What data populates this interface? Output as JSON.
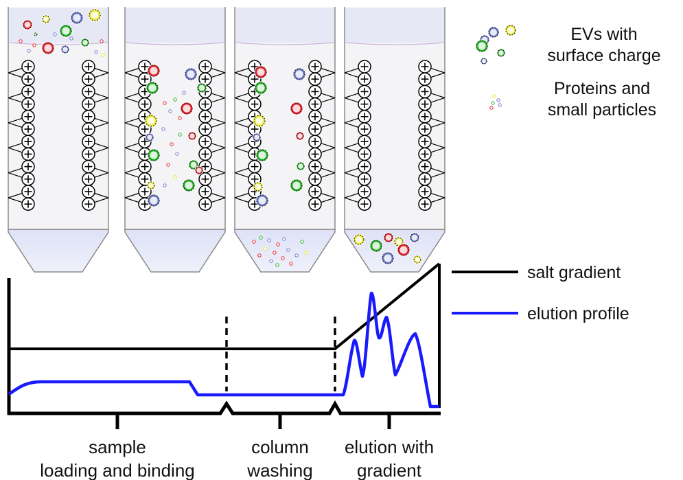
{
  "legend": {
    "evs_line1": "EVs with",
    "evs_line2": "surface charge",
    "proteins_line1": "Proteins and",
    "proteins_line2": "small particles",
    "salt_gradient": "salt gradient",
    "elution_profile": "elution profile"
  },
  "phases": {
    "loading_line1": "sample",
    "loading_line2": "loading and binding",
    "washing_line1": "column",
    "washing_line2": "washing",
    "elution_line1": "elution with",
    "elution_line2": "gradient"
  },
  "columns": [
    {
      "stage": "loading",
      "headspace": "sample-on-top"
    },
    {
      "stage": "binding",
      "headspace": "empty"
    },
    {
      "stage": "washing",
      "headspace": "empty",
      "outlet": "proteins-and-small-particles"
    },
    {
      "stage": "elution",
      "headspace": "empty",
      "outlet": "evs"
    }
  ],
  "colors": {
    "ev_red": "#e8202a",
    "ev_green": "#22b422",
    "ev_blue": "#6c78c8",
    "ev_yellow": "#e8e82a",
    "column_outline": "#8a8a8a",
    "column_fill": "#f4f4f6",
    "liquid": "#e4e6f7",
    "salt_line": "#000000",
    "elution_line": "#1a1aff"
  }
}
